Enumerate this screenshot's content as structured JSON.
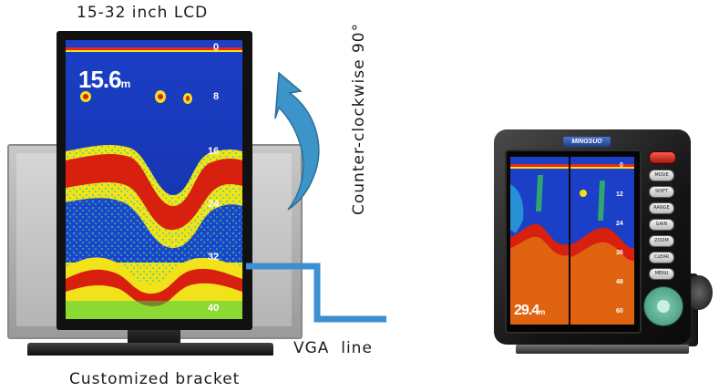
{
  "labels": {
    "lcd_size": "15-32 inch LCD",
    "rotation": "Counter-clockwise 90°",
    "vga": "VGA  line",
    "bracket": "Customized bracket"
  },
  "left_monitor": {
    "depth_reading": "15.6",
    "depth_unit": "m",
    "scale_ticks": [
      "0",
      "8",
      "16",
      "24",
      "32",
      "40"
    ]
  },
  "right_unit": {
    "brand": "MINGSUO",
    "depth_reading": "29.4",
    "depth_unit": "m",
    "scale_ticks": [
      "0",
      "12",
      "24",
      "36",
      "48",
      "60"
    ],
    "keys": [
      "MODE",
      "SHIFT",
      "RANGE",
      "GAIN",
      "ZOOM",
      "CLEAR",
      "MENU"
    ]
  },
  "colors": {
    "arrow": "#3c94c8",
    "vga_line": "#3c8fd0",
    "sonar_red": "#d8200f",
    "sonar_yellow": "#f2e21a",
    "sonar_blue": "#1638b8"
  }
}
